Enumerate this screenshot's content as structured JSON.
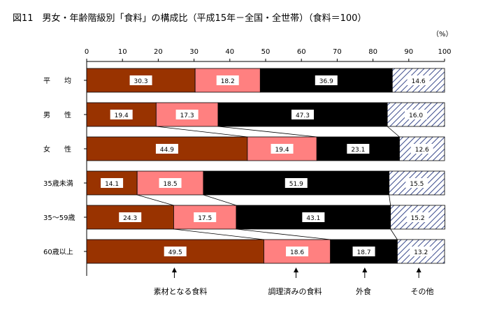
{
  "chart_data": {
    "type": "bar",
    "orientation": "horizontal",
    "stacked": "percent",
    "title": "図11　男女・年齢階級別「食料」の構成比（平成15年－全国・全世帯）（食料＝100）",
    "unit_label": "（%）",
    "xlim": [
      0,
      100
    ],
    "x_ticks": [
      "0",
      "10",
      "20",
      "30",
      "40",
      "50",
      "60",
      "70",
      "80",
      "90",
      "100"
    ],
    "categories": [
      "平　　均",
      "男　　性",
      "女　　性",
      "35歳未満",
      "35～59歳",
      "60歳以上"
    ],
    "series": [
      {
        "name": "素材となる食料",
        "color": "#993300",
        "values": [
          30.3,
          19.4,
          44.9,
          14.1,
          24.3,
          49.5
        ]
      },
      {
        "name": "調理済みの食料",
        "color": "#ff8080",
        "values": [
          18.2,
          17.3,
          19.4,
          18.5,
          17.5,
          18.6
        ]
      },
      {
        "name": "外食",
        "color": "#000000",
        "values": [
          36.9,
          47.3,
          23.1,
          51.9,
          43.1,
          18.7
        ]
      },
      {
        "name": "その他",
        "color": "#ffffff",
        "pattern": "diagonal-hatch",
        "values": [
          14.6,
          16.0,
          12.6,
          15.5,
          15.2,
          13.2
        ]
      }
    ],
    "value_labels": [
      [
        "30.3",
        "18.2",
        "36.9",
        "14.6"
      ],
      [
        "19.4",
        "17.3",
        "47.3",
        "16.0"
      ],
      [
        "44.9",
        "19.4",
        "23.1",
        "12.6"
      ],
      [
        "14.1",
        "18.5",
        "51.9",
        "15.5"
      ],
      [
        "24.3",
        "17.5",
        "43.1",
        "15.2"
      ],
      [
        "49.5",
        "18.6",
        "18.7",
        "13.2"
      ]
    ],
    "grid": false,
    "legend": "bottom, arrows pointing to segments"
  }
}
